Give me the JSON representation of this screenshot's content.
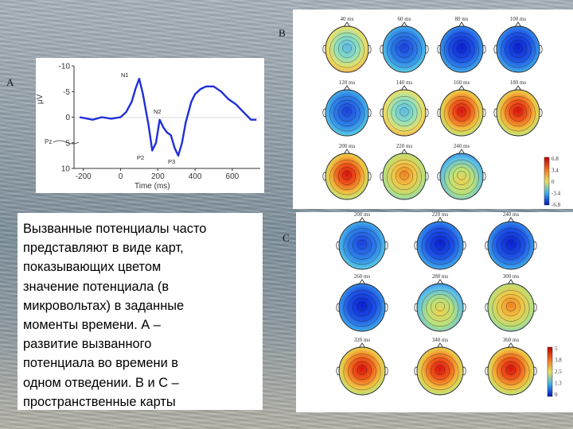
{
  "panel_labels": {
    "a": "A",
    "b": "B",
    "c": "C"
  },
  "erp_chart": {
    "y_ticks": [
      "-10",
      "-5",
      "0",
      "5",
      "10"
    ],
    "x_ticks": [
      "-200",
      "0",
      "200",
      "400",
      "600"
    ],
    "ylabel": "μV",
    "xlabel": "Time (ms)",
    "peaks": {
      "n1": "N1",
      "n2": "N2",
      "p2": "P2",
      "p3": "P3"
    },
    "side_note": "Pz",
    "line_color": "#1f2fd8"
  },
  "chart_data": {
    "type": "line",
    "xlabel": "Time (ms)",
    "ylabel": "μV",
    "xlim": [
      -250,
      750
    ],
    "ylim": [
      10,
      -10
    ],
    "x": [
      -220,
      -150,
      -100,
      -50,
      0,
      30,
      60,
      80,
      100,
      120,
      150,
      170,
      190,
      210,
      230,
      250,
      270,
      290,
      310,
      330,
      350,
      380,
      400,
      430,
      460,
      500,
      540,
      580,
      620,
      660,
      700,
      730
    ],
    "y": [
      0,
      0.5,
      0,
      0.3,
      0,
      -1,
      -3,
      -5.5,
      -7.5,
      -4.5,
      1.5,
      6.5,
      5,
      0.5,
      2,
      3,
      3.5,
      6,
      7.5,
      5,
      1,
      -3,
      -4.5,
      -5.5,
      -6,
      -6,
      -5,
      -3.5,
      -2.5,
      -1,
      0.5,
      0.5
    ]
  },
  "maps_b": {
    "labels": [
      "40 ms",
      "60 ms",
      "80 ms",
      "100 ms",
      "120 ms",
      "140 ms",
      "160 ms",
      "180 ms",
      "200 ms",
      "220 ms",
      "240 ms"
    ],
    "scale": [
      "6.8",
      "3.4",
      "0",
      "-3.4",
      "-6.8"
    ]
  },
  "maps_c": {
    "labels": [
      "200 ms",
      "220 ms",
      "240 ms",
      "260 ms",
      "280 ms",
      "300 ms",
      "320 ms",
      "340 ms",
      "360 ms"
    ],
    "scale": [
      "5",
      "3.8",
      "2.5",
      "1.3",
      "0"
    ]
  },
  "caption": "Вызванные потенциалы часто\nпредставляют в виде карт,\nпоказывающих цветом\nзначение потенциала (в\nмикровольтах) в заданные\nмоменты времени. А –\nразвитие вызванного\nпотенциала во времени в\nодном отведении. В и С –\nпространственные карты"
}
